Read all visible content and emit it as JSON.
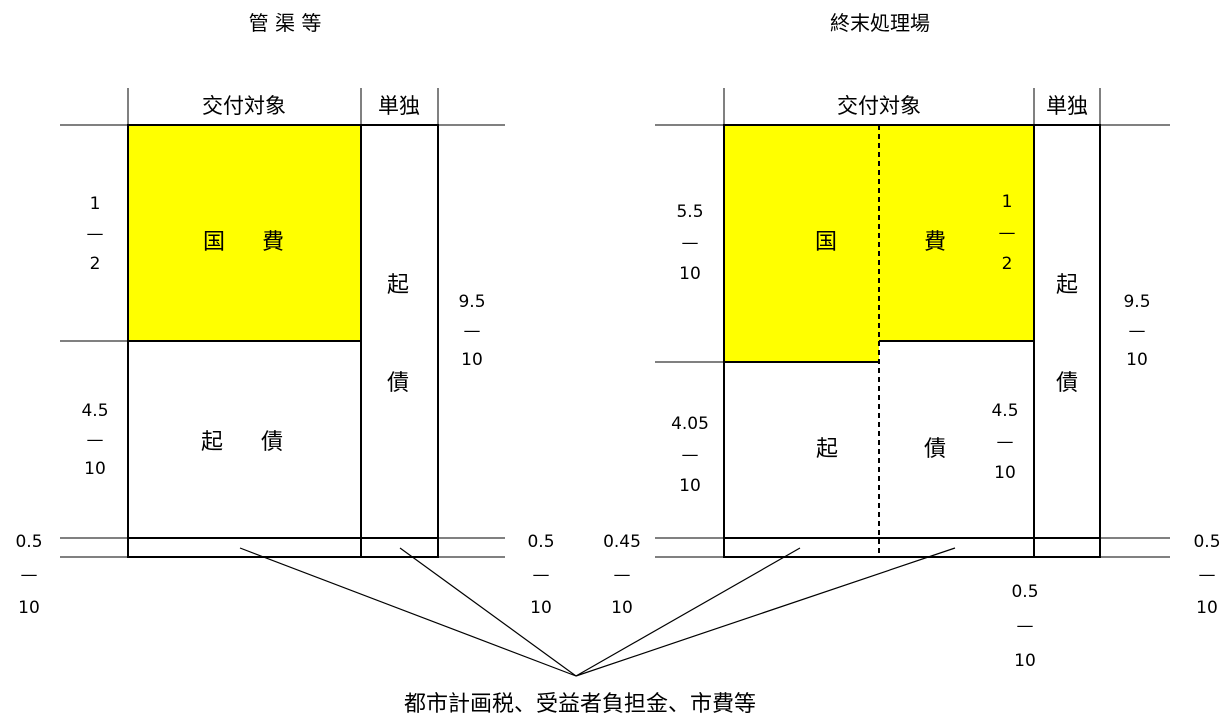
{
  "colors": {
    "national": "#ffff00",
    "line": "#000000",
    "background": "#ffffff"
  },
  "left": {
    "title": "管 渠 等",
    "header_subsidy": "交付対象",
    "header_single": "単独",
    "national_l": "国",
    "national_r": "費",
    "bond_l": "起",
    "bond_r": "債",
    "single_l": "起",
    "single_r": "債",
    "frac_top": {
      "num": "1",
      "bar": "—",
      "den": "2"
    },
    "frac_mid": {
      "num": "4.5",
      "bar": "—",
      "den": "10"
    },
    "frac_bot_left": {
      "num": "0.5",
      "bar": "—",
      "den": "10"
    },
    "frac_bot_right": {
      "num": "0.5",
      "bar": "—",
      "den": "10"
    },
    "frac_single": {
      "num": "9.5",
      "bar": "—",
      "den": "10"
    }
  },
  "right": {
    "title": "終末処理場",
    "header_subsidy": "交付対象",
    "header_single": "単独",
    "national_l": "国",
    "national_r": "費",
    "bond_l": "起",
    "bond_r": "債",
    "single_l": "起",
    "single_r": "債",
    "frac_top_left": {
      "num": "5.5",
      "bar": "—",
      "den": "10"
    },
    "frac_top_inner": {
      "num": "1",
      "bar": "—",
      "den": "2"
    },
    "frac_mid_left": {
      "num": "4.05",
      "bar": "—",
      "den": "10"
    },
    "frac_mid_inner": {
      "num": "4.5",
      "bar": "—",
      "den": "10"
    },
    "frac_bot_left": {
      "num": "0.45",
      "bar": "—",
      "den": "10"
    },
    "frac_bot_center": {
      "num": "0.5",
      "bar": "—",
      "den": "10"
    },
    "frac_bot_right": {
      "num": "0.5",
      "bar": "—",
      "den": "10"
    },
    "frac_single": {
      "num": "9.5",
      "bar": "—",
      "den": "10"
    }
  },
  "bottom_label": "都市計画税、受益者負担金、市費等"
}
